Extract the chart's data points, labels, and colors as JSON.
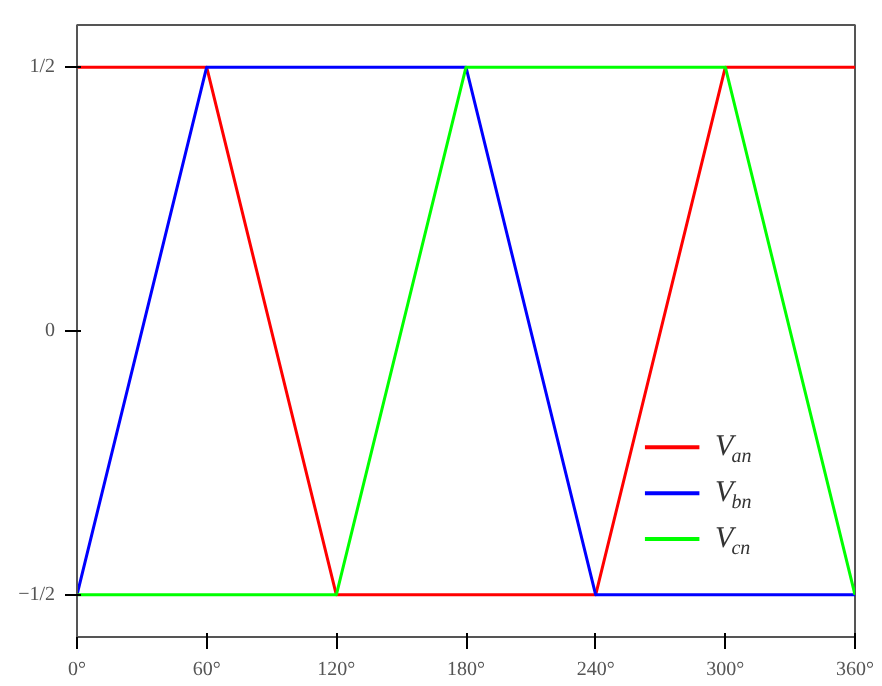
{
  "chart_data": {
    "type": "line",
    "x": [
      0,
      60,
      120,
      180,
      240,
      300,
      360
    ],
    "series": [
      {
        "name": "V$_{an}$",
        "color": "#ff0000",
        "values": [
          0.5,
          0.5,
          -0.5,
          -0.5,
          -0.5,
          0.5,
          0.5
        ]
      },
      {
        "name": "V$_{bn}$",
        "color": "#0000ff",
        "values": [
          -0.5,
          0.5,
          0.5,
          0.5,
          -0.5,
          -0.5,
          -0.5
        ]
      },
      {
        "name": "V$_{cn}$",
        "color": "#00ff00",
        "values": [
          -0.5,
          -0.5,
          -0.5,
          0.5,
          0.5,
          0.5,
          -0.5
        ]
      }
    ],
    "xlim": [
      0,
      360
    ],
    "xticks": [
      {
        "value": 0,
        "label": "0°"
      },
      {
        "value": 60,
        "label": "60°"
      },
      {
        "value": 120,
        "label": "120°"
      },
      {
        "value": 180,
        "label": "180°"
      },
      {
        "value": 240,
        "label": "240°"
      },
      {
        "value": 300,
        "label": "300°"
      },
      {
        "value": 360,
        "label": "360°"
      }
    ],
    "ylim": [
      -0.58,
      0.58
    ],
    "yticks": [
      {
        "value": -0.5,
        "label": "−1/2"
      },
      0,
      {
        "value": 0.5,
        "label": "1/2"
      }
    ],
    "grid": false,
    "legend": "bottom right",
    "marker": "none",
    "line_style": "solid"
  }
}
